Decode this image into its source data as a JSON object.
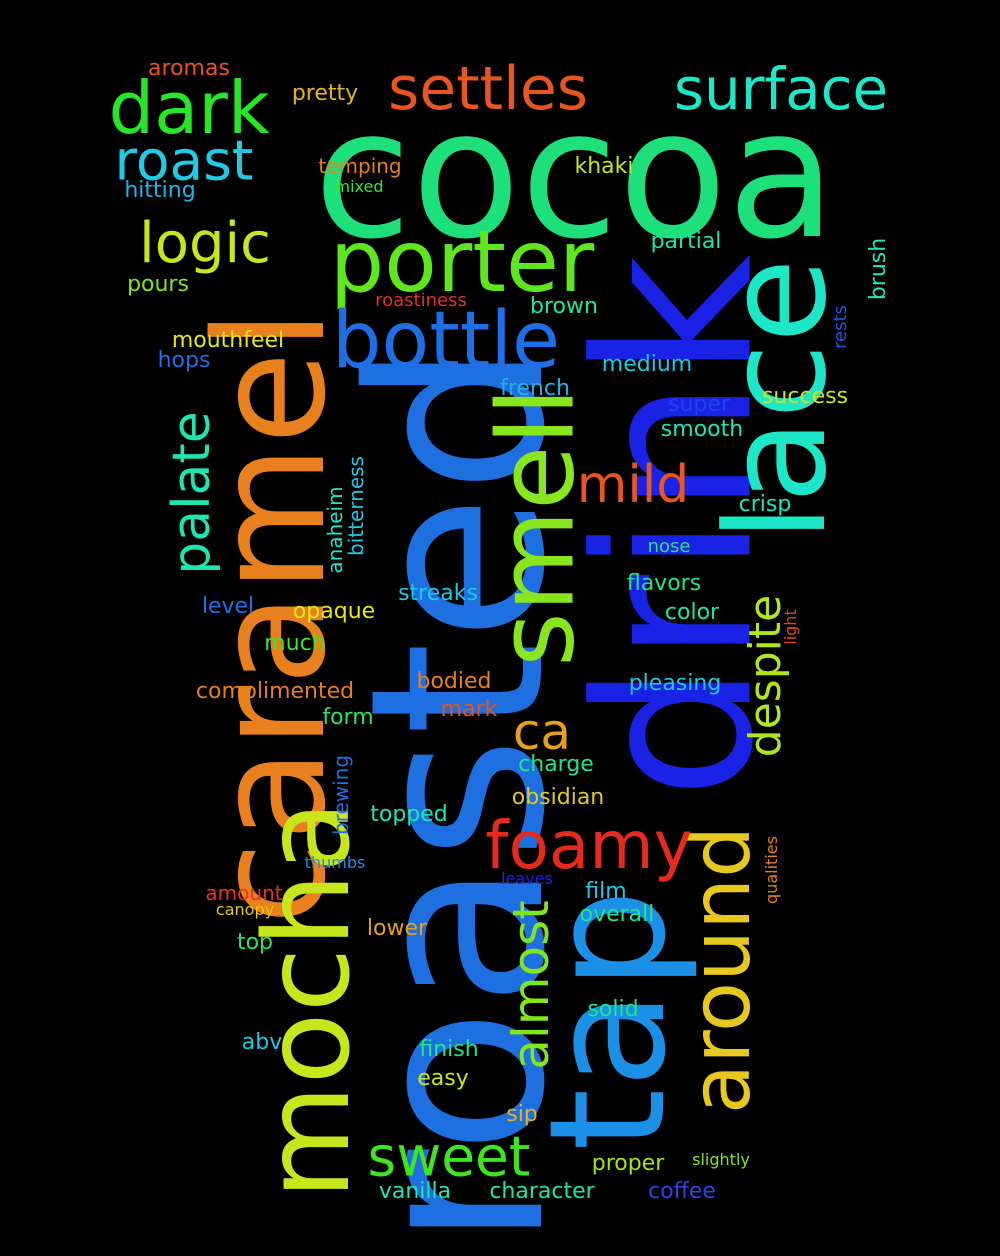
{
  "words": [
    {
      "text": "cocoa",
      "color": "#1ee07a",
      "orientation": "horizontal"
    },
    {
      "text": "roasted",
      "color": "#1e6fe0",
      "orientation": "vertical"
    },
    {
      "text": "drink",
      "color": "#1a22e6",
      "orientation": "vertical"
    },
    {
      "text": "caramel",
      "color": "#e8801e",
      "orientation": "vertical"
    },
    {
      "text": "tap",
      "color": "#1c8fe6",
      "orientation": "vertical"
    },
    {
      "text": "lace",
      "color": "#1ee6c8",
      "orientation": "vertical"
    },
    {
      "text": "mocha",
      "color": "#c8e61e",
      "orientation": "vertical"
    },
    {
      "text": "smell",
      "color": "#88e61e",
      "orientation": "vertical"
    },
    {
      "text": "around",
      "color": "#e6c81e",
      "orientation": "vertical"
    },
    {
      "text": "porter",
      "color": "#5ee61e",
      "orientation": "horizontal"
    },
    {
      "text": "bottle",
      "color": "#1e6fe6",
      "orientation": "horizontal"
    },
    {
      "text": "dark",
      "color": "#26e626",
      "orientation": "horizontal"
    },
    {
      "text": "settles",
      "color": "#e6561e",
      "orientation": "horizontal"
    },
    {
      "text": "surface",
      "color": "#1ee6c8",
      "orientation": "horizontal"
    },
    {
      "text": "roast",
      "color": "#1ecce6",
      "orientation": "horizontal"
    },
    {
      "text": "logic",
      "color": "#c8e61e",
      "orientation": "horizontal"
    },
    {
      "text": "palate",
      "color": "#1ee6b0",
      "orientation": "vertical"
    },
    {
      "text": "despite",
      "color": "#b0e61e",
      "orientation": "vertical"
    },
    {
      "text": "almost",
      "color": "#80e61e",
      "orientation": "vertical"
    },
    {
      "text": "foamy",
      "color": "#e62a1e",
      "orientation": "horizontal"
    },
    {
      "text": "mild",
      "color": "#e6561e",
      "orientation": "horizontal"
    },
    {
      "text": "ca",
      "color": "#e6a01e",
      "orientation": "horizontal"
    },
    {
      "text": "sweet",
      "color": "#3ee61e",
      "orientation": "horizontal"
    },
    {
      "text": "aromas",
      "color": "#e6561e",
      "orientation": "horizontal"
    },
    {
      "text": "pretty",
      "color": "#e6b41e",
      "orientation": "horizontal"
    },
    {
      "text": "temping",
      "color": "#e6801e",
      "orientation": "horizontal"
    },
    {
      "text": "mixed",
      "color": "#3ee61e",
      "orientation": "horizontal"
    },
    {
      "text": "khaki",
      "color": "#c8e61e",
      "orientation": "horizontal"
    },
    {
      "text": "hitting",
      "color": "#1eb4e6",
      "orientation": "horizontal"
    },
    {
      "text": "partial",
      "color": "#1ee6a0",
      "orientation": "horizontal"
    },
    {
      "text": "brush",
      "color": "#1ee6b4",
      "orientation": "vertical"
    },
    {
      "text": "pours",
      "color": "#80e61e",
      "orientation": "horizontal"
    },
    {
      "text": "roastiness",
      "color": "#e6321e",
      "orientation": "horizontal"
    },
    {
      "text": "brown",
      "color": "#1ee6a0",
      "orientation": "horizontal"
    },
    {
      "text": "rests",
      "color": "#1e56e6",
      "orientation": "vertical"
    },
    {
      "text": "mouthfeel",
      "color": "#e6e61e",
      "orientation": "horizontal"
    },
    {
      "text": "hops",
      "color": "#1e6fe6",
      "orientation": "horizontal"
    },
    {
      "text": "medium",
      "color": "#1ec8e6",
      "orientation": "horizontal"
    },
    {
      "text": "french",
      "color": "#1eb4e6",
      "orientation": "horizontal"
    },
    {
      "text": "super",
      "color": "#1e46e6",
      "orientation": "horizontal"
    },
    {
      "text": "success",
      "color": "#c8e61e",
      "orientation": "horizontal"
    },
    {
      "text": "smooth",
      "color": "#1ee6b4",
      "orientation": "horizontal"
    },
    {
      "text": "bitterness",
      "color": "#1ec8e6",
      "orientation": "vertical"
    },
    {
      "text": "anaheim",
      "color": "#1ee6c8",
      "orientation": "vertical"
    },
    {
      "text": "crisp",
      "color": "#1ee6b4",
      "orientation": "horizontal"
    },
    {
      "text": "nose",
      "color": "#26e67a",
      "orientation": "horizontal"
    },
    {
      "text": "flavors",
      "color": "#1ee68c",
      "orientation": "horizontal"
    },
    {
      "text": "streaks",
      "color": "#1ec8e6",
      "orientation": "horizontal"
    },
    {
      "text": "level",
      "color": "#1e6fe6",
      "orientation": "horizontal"
    },
    {
      "text": "opaque",
      "color": "#e6e61e",
      "orientation": "horizontal"
    },
    {
      "text": "color",
      "color": "#1ee6a0",
      "orientation": "horizontal"
    },
    {
      "text": "light",
      "color": "#e6461e",
      "orientation": "vertical"
    },
    {
      "text": "much",
      "color": "#3ee61e",
      "orientation": "horizontal"
    },
    {
      "text": "complimented",
      "color": "#e6801e",
      "orientation": "horizontal"
    },
    {
      "text": "bodied",
      "color": "#e6801e",
      "orientation": "horizontal"
    },
    {
      "text": "pleasing",
      "color": "#1ec8e6",
      "orientation": "horizontal"
    },
    {
      "text": "form",
      "color": "#26e65e",
      "orientation": "horizontal"
    },
    {
      "text": "mark",
      "color": "#e6561e",
      "orientation": "horizontal"
    },
    {
      "text": "brewing",
      "color": "#1e6fe6",
      "orientation": "vertical"
    },
    {
      "text": "charge",
      "color": "#1ee68c",
      "orientation": "horizontal"
    },
    {
      "text": "obsidian",
      "color": "#e6c81e",
      "orientation": "horizontal"
    },
    {
      "text": "topped",
      "color": "#1ee6b0",
      "orientation": "horizontal"
    },
    {
      "text": "thumbs",
      "color": "#1e8ce6",
      "orientation": "horizontal"
    },
    {
      "text": "leaves",
      "color": "#2a1ee6",
      "orientation": "horizontal"
    },
    {
      "text": "qualities",
      "color": "#e6801e",
      "orientation": "vertical"
    },
    {
      "text": "amount",
      "color": "#e6321e",
      "orientation": "horizontal"
    },
    {
      "text": "canopy",
      "color": "#e6c81e",
      "orientation": "horizontal"
    },
    {
      "text": "film",
      "color": "#1ec8e6",
      "orientation": "horizontal"
    },
    {
      "text": "overall",
      "color": "#1ee68c",
      "orientation": "horizontal"
    },
    {
      "text": "lower",
      "color": "#e6a01e",
      "orientation": "horizontal"
    },
    {
      "text": "top",
      "color": "#26e65e",
      "orientation": "horizontal"
    },
    {
      "text": "solid",
      "color": "#1ee68c",
      "orientation": "horizontal"
    },
    {
      "text": "abv",
      "color": "#1ec8e6",
      "orientation": "horizontal"
    },
    {
      "text": "finish",
      "color": "#1ee68c",
      "orientation": "horizontal"
    },
    {
      "text": "easy",
      "color": "#c8e61e",
      "orientation": "horizontal"
    },
    {
      "text": "sip",
      "color": "#e6b41e",
      "orientation": "horizontal"
    },
    {
      "text": "proper",
      "color": "#a0e61e",
      "orientation": "horizontal"
    },
    {
      "text": "slightly",
      "color": "#80e61e",
      "orientation": "horizontal"
    },
    {
      "text": "vanilla",
      "color": "#1ee6b0",
      "orientation": "horizontal"
    },
    {
      "text": "character",
      "color": "#1ee6a0",
      "orientation": "horizontal"
    },
    {
      "text": "coffee",
      "color": "#2a46e6",
      "orientation": "horizontal"
    }
  ]
}
